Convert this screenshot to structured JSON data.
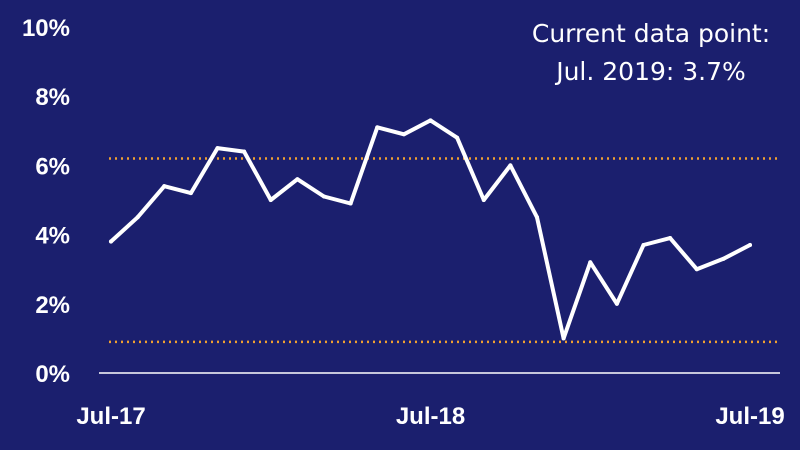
{
  "colors": {
    "background": "#1b1f6e",
    "line": "#ffffff",
    "reference_lines": "#f0a030",
    "axis": "#ffffff",
    "text": "#ffffff"
  },
  "annotation": {
    "line1": "Current data point:",
    "line2": "Jul. 2019: 3.7%"
  },
  "chart_data": {
    "type": "line",
    "title": "",
    "xlabel": "",
    "ylabel": "",
    "ylim": [
      0,
      10
    ],
    "y_ticks": [
      0,
      2,
      4,
      6,
      8,
      10
    ],
    "y_tick_labels": [
      "0%",
      "2%",
      "4%",
      "6%",
      "8%",
      "10%"
    ],
    "x_tick_labels": [
      "Jul-17",
      "Jul-18",
      "Jul-19"
    ],
    "x_tick_label_positions": [
      0,
      12,
      24
    ],
    "x": [
      "Jul-17",
      "Aug-17",
      "Sep-17",
      "Oct-17",
      "Nov-17",
      "Dec-17",
      "Jan-18",
      "Feb-18",
      "Mar-18",
      "Apr-18",
      "May-18",
      "Jun-18",
      "Jul-18",
      "Aug-18",
      "Sep-18",
      "Oct-18",
      "Nov-18",
      "Dec-18",
      "Jan-19",
      "Feb-19",
      "Mar-19",
      "Apr-19",
      "May-19",
      "Jun-19",
      "Jul-19"
    ],
    "series": [
      {
        "values": [
          3.8,
          4.5,
          5.4,
          5.2,
          6.5,
          6.4,
          5.0,
          5.6,
          5.1,
          4.9,
          7.1,
          6.9,
          7.3,
          6.8,
          5.0,
          6.0,
          4.5,
          1.0,
          3.2,
          2.0,
          3.7,
          3.9,
          3.0,
          3.3,
          3.7
        ]
      }
    ],
    "reference_lines": [
      6.2,
      0.9
    ],
    "grid": false,
    "legend": "none"
  }
}
